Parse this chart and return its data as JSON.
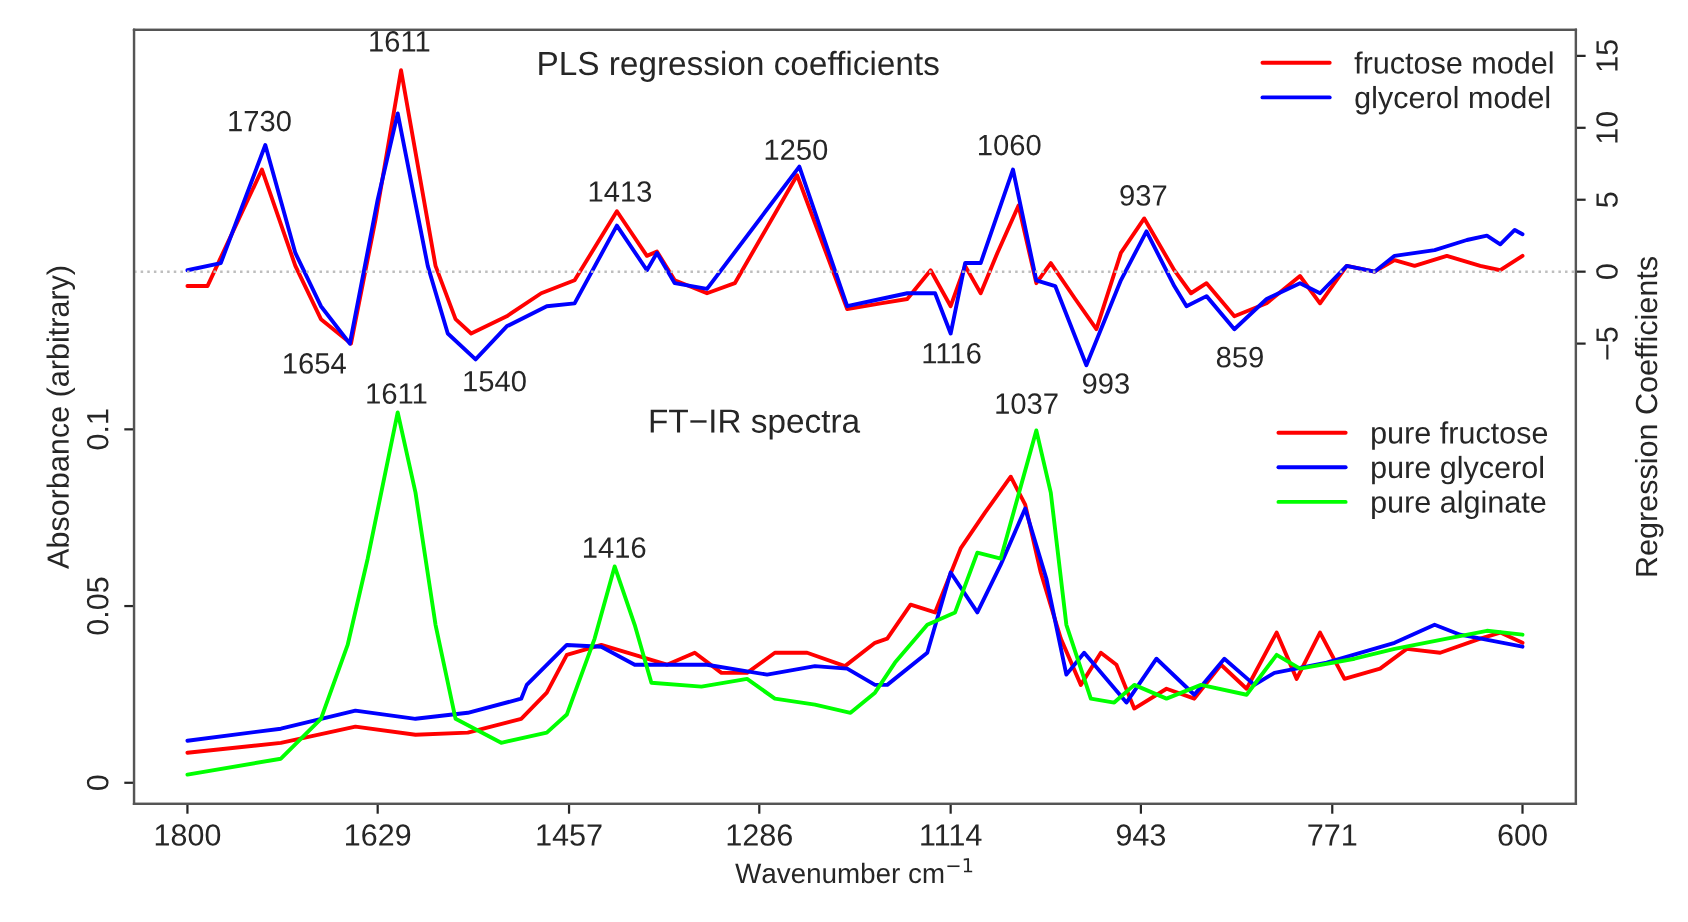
{
  "chart_data": {
    "type": "line",
    "xlabel": "Wavenumber cm$^{−1}$",
    "ylabel": "Absorbance (arbitrary)",
    "y2label": "Regression Coefficients",
    "xlim": [
      1848,
      552
    ],
    "xticks": [
      1800,
      1629,
      1457,
      1286,
      1114,
      943,
      771,
      600
    ],
    "ylim": [
      -0.006,
      0.213
    ],
    "yticks": [
      0,
      0.05,
      0.1
    ],
    "y2lim": [
      -37,
      16.8
    ],
    "y2ticks": [
      {
        "value": -5,
        "label": "−5"
      },
      0,
      5,
      10,
      15
    ],
    "grid": false,
    "legend": "top right",
    "marker": "none",
    "line_style": "solid",
    "ref_lines": [
      {
        "axis": "y2",
        "value": 0,
        "color": "#bebebe",
        "line_style": "dotted"
      }
    ],
    "series": [
      {
        "name": "fructose model",
        "color": "#ff0000",
        "axis": "y2",
        "x": [
          1800,
          1782,
          1733,
          1703,
          1680,
          1653,
          1631,
          1608,
          1577,
          1559,
          1545,
          1513,
          1482,
          1452,
          1414,
          1387,
          1378,
          1362,
          1333,
          1308,
          1252,
          1207,
          1177,
          1153,
          1132,
          1114,
          1101,
          1087,
          1072,
          1053,
          1037,
          1024,
          1002,
          983,
          961,
          940,
          913,
          898,
          884,
          859,
          830,
          800,
          782,
          758,
          733,
          715,
          697,
          668,
          638,
          620,
          600
        ],
        "values": [
          -1.0,
          -1.0,
          7.1,
          0.4,
          -3.3,
          -5.0,
          3.6,
          14.0,
          0.4,
          -3.3,
          -4.3,
          -3.1,
          -1.5,
          -0.6,
          4.2,
          1.1,
          1.4,
          -0.6,
          -1.5,
          -0.8,
          6.7,
          -2.6,
          -2.2,
          -1.9,
          0.1,
          -2.4,
          0.4,
          -1.5,
          1.3,
          4.6,
          -0.8,
          0.6,
          -1.9,
          -4.0,
          1.3,
          3.7,
          0.1,
          -1.5,
          -0.8,
          -3.1,
          -2.2,
          -0.3,
          -2.2,
          0.4,
          0.0,
          0.8,
          0.4,
          1.1,
          0.4,
          0.1,
          1.1
        ]
      },
      {
        "name": "glycerol model",
        "color": "#0000ff",
        "axis": "y2",
        "x": [
          1800,
          1770,
          1730,
          1703,
          1680,
          1654,
          1629,
          1611,
          1584,
          1566,
          1541,
          1513,
          1477,
          1452,
          1414,
          1387,
          1378,
          1362,
          1333,
          1250,
          1207,
          1177,
          1153,
          1128,
          1114,
          1101,
          1087,
          1058,
          1037,
          1020,
          992,
          961,
          938,
          913,
          902,
          884,
          859,
          830,
          800,
          782,
          758,
          733,
          715,
          679,
          650,
          632,
          620,
          607,
          600
        ],
        "values": [
          0.1,
          0.6,
          8.8,
          1.3,
          -2.4,
          -5.0,
          5.0,
          11.0,
          0.4,
          -4.3,
          -6.1,
          -3.8,
          -2.4,
          -2.2,
          3.2,
          0.1,
          1.3,
          -0.8,
          -1.2,
          7.3,
          -2.4,
          -1.9,
          -1.5,
          -1.5,
          -4.3,
          0.6,
          0.6,
          7.1,
          -0.6,
          -1.0,
          -6.5,
          -0.6,
          2.8,
          -1.0,
          -2.4,
          -1.7,
          -4.0,
          -1.9,
          -0.8,
          -1.5,
          0.4,
          0.0,
          1.1,
          1.5,
          2.2,
          2.5,
          1.9,
          2.9,
          2.6
        ]
      },
      {
        "name": "pure fructose",
        "color": "#ff0000",
        "x": [
          1800,
          1716,
          1649,
          1595,
          1548,
          1500,
          1477,
          1459,
          1428,
          1398,
          1369,
          1344,
          1320,
          1297,
          1272,
          1243,
          1209,
          1182,
          1171,
          1150,
          1128,
          1105,
          1083,
          1060,
          1047,
          1033,
          1015,
          997,
          979,
          965,
          949,
          920,
          895,
          871,
          848,
          821,
          803,
          782,
          760,
          728,
          704,
          674,
          638,
          620,
          600
        ],
        "values": [
          0.0085,
          0.0113,
          0.0159,
          0.0136,
          0.0142,
          0.0181,
          0.0255,
          0.0362,
          0.039,
          0.0362,
          0.0334,
          0.0368,
          0.0311,
          0.0311,
          0.0368,
          0.0368,
          0.033,
          0.0396,
          0.0408,
          0.0504,
          0.0482,
          0.0663,
          0.0765,
          0.0866,
          0.0787,
          0.0595,
          0.0408,
          0.0277,
          0.0368,
          0.0334,
          0.021,
          0.0266,
          0.0238,
          0.0334,
          0.0266,
          0.0425,
          0.0294,
          0.0425,
          0.0294,
          0.0323,
          0.0379,
          0.0368,
          0.0408,
          0.0425,
          0.0396
        ]
      },
      {
        "name": "pure glycerol",
        "color": "#0000ff",
        "x": [
          1800,
          1716,
          1649,
          1595,
          1548,
          1500,
          1495,
          1459,
          1428,
          1398,
          1333,
          1279,
          1236,
          1207,
          1182,
          1171,
          1135,
          1114,
          1090,
          1069,
          1047,
          1028,
          1010,
          994,
          956,
          929,
          895,
          868,
          841,
          823,
          776,
          715,
          679,
          656,
          600
        ],
        "values": [
          0.0119,
          0.0153,
          0.0204,
          0.0181,
          0.0198,
          0.0238,
          0.0277,
          0.039,
          0.0385,
          0.0334,
          0.0334,
          0.0306,
          0.033,
          0.0323,
          0.0277,
          0.0277,
          0.0368,
          0.0595,
          0.0482,
          0.0617,
          0.0776,
          0.0578,
          0.0306,
          0.0368,
          0.0227,
          0.0351,
          0.0249,
          0.0351,
          0.0277,
          0.0311,
          0.034,
          0.0396,
          0.0447,
          0.0419,
          0.0385
        ]
      },
      {
        "name": "pure alginate",
        "color": "#00ff00",
        "x": [
          1800,
          1716,
          1680,
          1656,
          1638,
          1611,
          1595,
          1577,
          1559,
          1518,
          1477,
          1459,
          1434,
          1416,
          1398,
          1383,
          1338,
          1297,
          1272,
          1236,
          1204,
          1182,
          1164,
          1135,
          1110,
          1090,
          1069,
          1037,
          1024,
          1010,
          988,
          967,
          949,
          920,
          889,
          848,
          821,
          800,
          751,
          715,
          668,
          632,
          600
        ],
        "values": [
          0.0023,
          0.0068,
          0.0181,
          0.039,
          0.0634,
          0.1048,
          0.0821,
          0.0447,
          0.0181,
          0.0113,
          0.0142,
          0.0193,
          0.0408,
          0.0612,
          0.0447,
          0.0283,
          0.0272,
          0.0294,
          0.0238,
          0.0221,
          0.0198,
          0.0255,
          0.034,
          0.0447,
          0.0482,
          0.0651,
          0.0634,
          0.0997,
          0.0821,
          0.0447,
          0.0238,
          0.0227,
          0.0277,
          0.0238,
          0.0277,
          0.0249,
          0.0362,
          0.0323,
          0.0351,
          0.0379,
          0.0408,
          0.043,
          0.0419
        ]
      }
    ],
    "annotations": [
      "PLS regression coefficients",
      "FT−IR spectra",
      "1730",
      "1611",
      "1654",
      "1540",
      "1413",
      "1250",
      "1060",
      "1116",
      "993",
      "937",
      "859",
      "1611",
      "1416",
      "1037"
    ]
  }
}
